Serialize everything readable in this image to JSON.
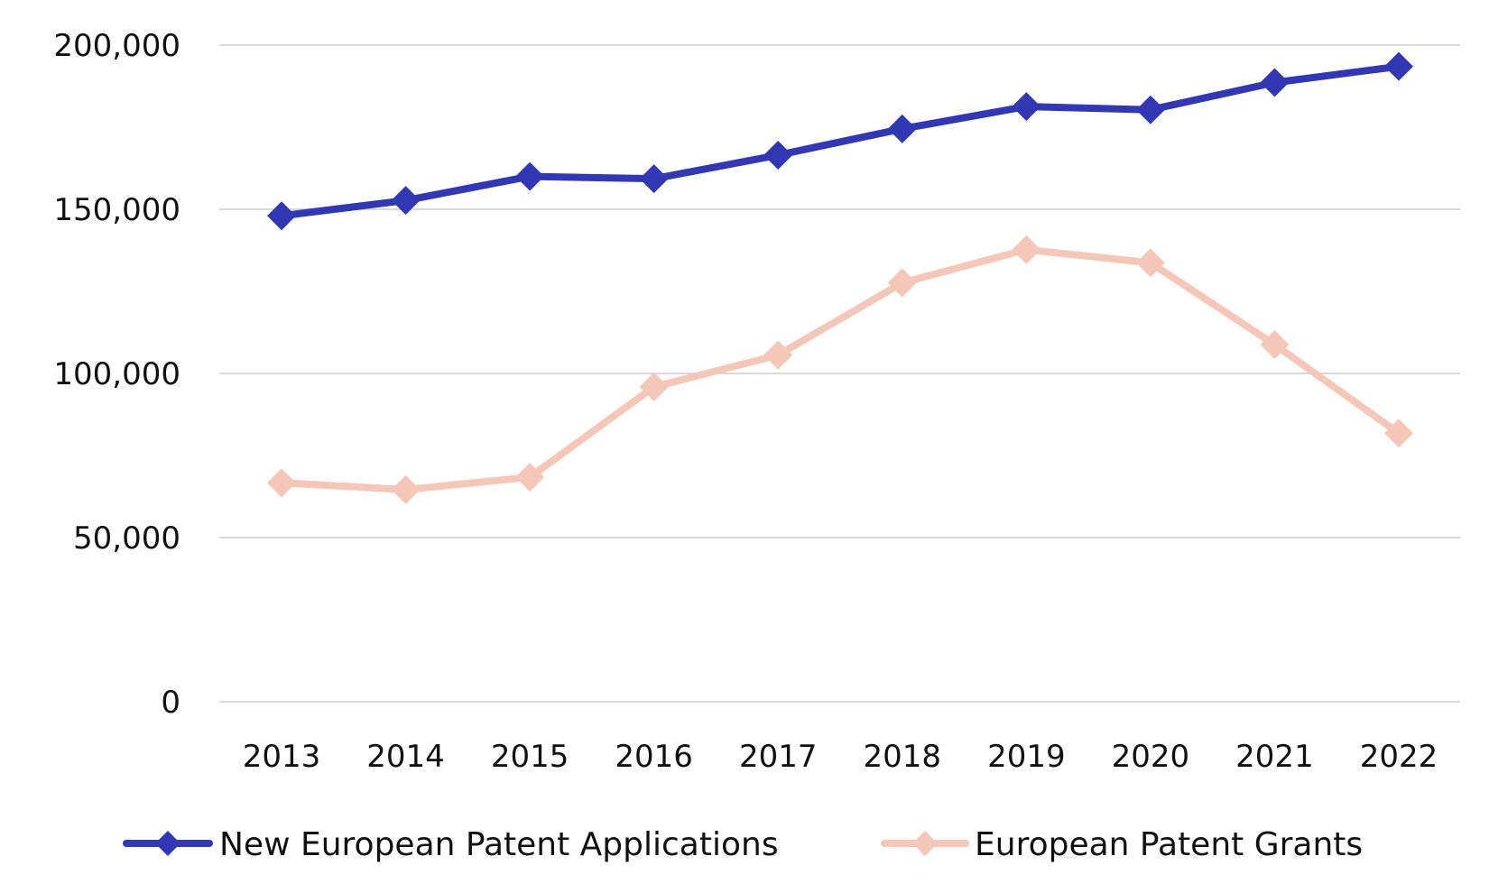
{
  "chart_data": {
    "type": "line",
    "title": "",
    "xlabel": "",
    "ylabel": "",
    "categories": [
      "2013",
      "2014",
      "2015",
      "2016",
      "2017",
      "2018",
      "2019",
      "2020",
      "2021",
      "2022"
    ],
    "ylim": [
      0,
      200000
    ],
    "yticks": [
      0,
      50000,
      100000,
      150000,
      200000
    ],
    "ytick_labels": [
      "0",
      "50,000",
      "100,000",
      "150,000",
      "200,000"
    ],
    "grid": true,
    "legend_position": "bottom",
    "series": [
      {
        "name": "New European Patent Applications",
        "color": "#3238b4",
        "marker": "diamond",
        "values": [
          148000,
          152700,
          160000,
          159300,
          166500,
          174500,
          181300,
          180300,
          188600,
          193500
        ]
      },
      {
        "name": "European Patent Grants",
        "color": "#f4c7b8",
        "marker": "diamond",
        "values": [
          66700,
          64600,
          68400,
          95900,
          105600,
          127600,
          137700,
          133700,
          108800,
          81800
        ]
      }
    ]
  }
}
